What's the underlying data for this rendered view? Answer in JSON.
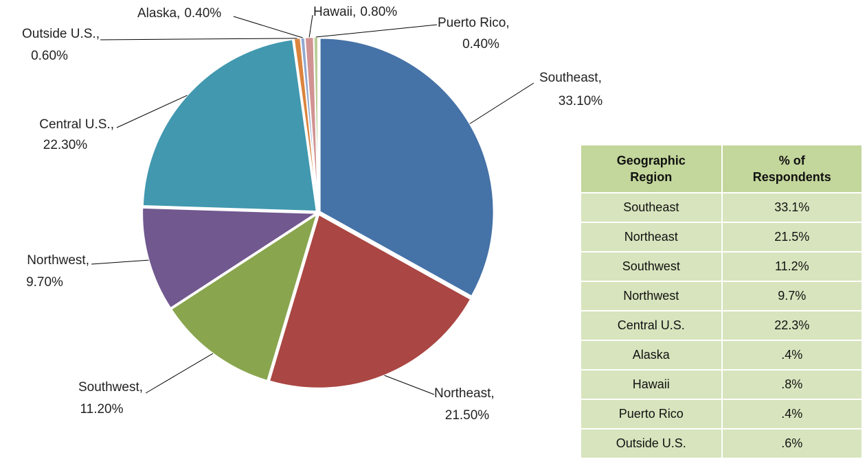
{
  "chart_data": {
    "type": "pie",
    "categories": [
      "Southeast,",
      "Northeast,",
      "Southwest,",
      "Northwest,",
      "Central U.S.,",
      "Outside U.S.,",
      "Alaska,",
      "Hawaii,",
      "Puerto Rico,"
    ],
    "values": [
      33.1,
      21.5,
      11.2,
      9.7,
      22.3,
      0.6,
      0.4,
      0.8,
      0.4
    ],
    "value_labels": [
      "33.10%",
      "21.50%",
      "11.20%",
      "9.70%",
      "22.30%",
      "0.60%",
      "0.40%",
      "0.80%",
      "0.40%"
    ],
    "colors": [
      "#4572a7",
      "#aa4643",
      "#89a54e",
      "#71588f",
      "#4198af",
      "#db843d",
      "#93a9cf",
      "#d19392",
      "#b9cd96"
    ]
  },
  "table": {
    "headers": [
      "Geographic Region",
      "% of Respondents"
    ],
    "rows": [
      [
        "Southeast",
        "33.1%"
      ],
      [
        "Northeast",
        "21.5%"
      ],
      [
        "Southwest",
        "11.2%"
      ],
      [
        "Northwest",
        "9.7%"
      ],
      [
        "Central U.S.",
        "22.3%"
      ],
      [
        "Alaska",
        ".4%"
      ],
      [
        "Hawaii",
        ".8%"
      ],
      [
        "Puerto Rico",
        ".4%"
      ],
      [
        "Outside U.S.",
        ".6%"
      ]
    ]
  }
}
